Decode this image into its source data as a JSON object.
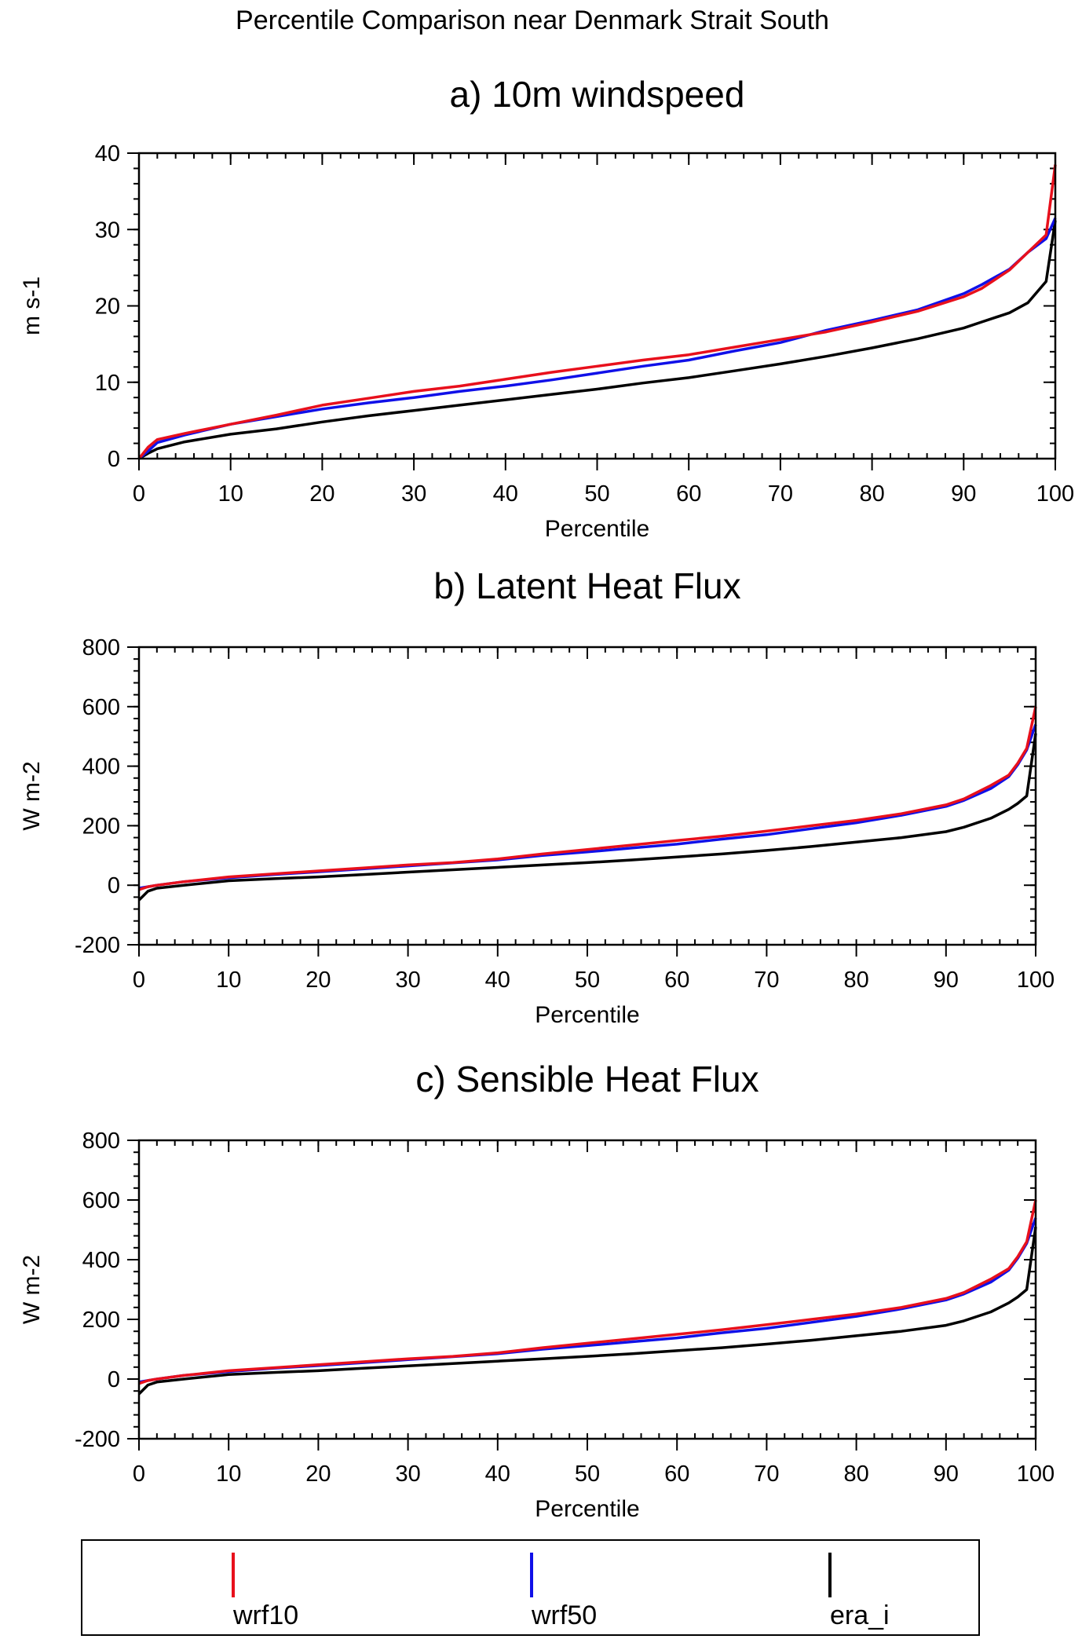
{
  "figure": {
    "title": "Percentile Comparison near Denmark Strait South"
  },
  "legend": {
    "entries": [
      {
        "label": "wrf10",
        "color": "#e8101c"
      },
      {
        "label": "wrf50",
        "color": "#1010e8"
      },
      {
        "label": "era_i",
        "color": "#000000"
      }
    ]
  },
  "chart_data": [
    {
      "type": "line",
      "title": "a)  10m windspeed",
      "xlabel": "Percentile",
      "ylabel": "m s-1",
      "xlim": [
        0,
        100
      ],
      "ylim": [
        0,
        40
      ],
      "xticks": [
        0,
        10,
        20,
        30,
        40,
        50,
        60,
        70,
        80,
        90,
        100
      ],
      "yticks": [
        0,
        10,
        20,
        30,
        40
      ],
      "x": [
        0,
        1,
        2,
        5,
        10,
        15,
        20,
        25,
        30,
        35,
        40,
        45,
        50,
        55,
        60,
        65,
        70,
        75,
        80,
        85,
        90,
        92,
        95,
        97,
        99,
        100
      ],
      "series": [
        {
          "name": "wrf10",
          "color": "#e8101c",
          "values": [
            0,
            1.5,
            2.5,
            3.3,
            4.5,
            5.7,
            7.0,
            7.9,
            8.8,
            9.5,
            10.4,
            11.3,
            12.1,
            12.9,
            13.6,
            14.6,
            15.6,
            16.6,
            17.9,
            19.3,
            21.2,
            22.3,
            24.7,
            27.0,
            29.3,
            38.5
          ]
        },
        {
          "name": "wrf50",
          "color": "#1010e8",
          "values": [
            0,
            1.0,
            2.1,
            3.1,
            4.5,
            5.5,
            6.5,
            7.3,
            8.0,
            8.8,
            9.5,
            10.3,
            11.2,
            12.1,
            12.9,
            14.1,
            15.2,
            16.8,
            18.1,
            19.5,
            21.6,
            22.8,
            24.8,
            27.0,
            28.8,
            31.5
          ]
        },
        {
          "name": "era_i",
          "color": "#000000",
          "values": [
            0,
            0.7,
            1.3,
            2.2,
            3.2,
            3.9,
            4.8,
            5.6,
            6.3,
            7.0,
            7.7,
            8.4,
            9.1,
            9.9,
            10.6,
            11.5,
            12.4,
            13.4,
            14.5,
            15.7,
            17.1,
            17.9,
            19.1,
            20.4,
            23.2,
            31.2
          ]
        }
      ]
    },
    {
      "type": "line",
      "title": "b)  Latent Heat Flux",
      "xlabel": "Percentile",
      "ylabel": "W m-2",
      "xlim": [
        0,
        100
      ],
      "ylim": [
        -200,
        800
      ],
      "xticks": [
        0,
        10,
        20,
        30,
        40,
        50,
        60,
        70,
        80,
        90,
        100
      ],
      "yticks": [
        -200,
        0,
        200,
        400,
        600,
        800
      ],
      "x": [
        0,
        1,
        2,
        5,
        10,
        15,
        20,
        25,
        30,
        35,
        40,
        45,
        50,
        55,
        60,
        65,
        70,
        75,
        80,
        85,
        90,
        92,
        95,
        97,
        98,
        99,
        100
      ],
      "series": [
        {
          "name": "wrf10",
          "color": "#e8101c",
          "values": [
            -15,
            -5,
            0,
            12,
            28,
            38,
            48,
            58,
            68,
            76,
            88,
            105,
            120,
            135,
            150,
            165,
            182,
            200,
            218,
            240,
            270,
            290,
            335,
            370,
            410,
            460,
            600
          ]
        },
        {
          "name": "wrf50",
          "color": "#1010e8",
          "values": [
            -10,
            -5,
            0,
            12,
            25,
            36,
            45,
            55,
            65,
            75,
            85,
            100,
            112,
            125,
            138,
            155,
            170,
            190,
            210,
            235,
            265,
            285,
            325,
            365,
            405,
            455,
            540
          ]
        },
        {
          "name": "era_i",
          "color": "#000000",
          "values": [
            -50,
            -20,
            -10,
            0,
            15,
            22,
            28,
            36,
            44,
            52,
            60,
            68,
            76,
            85,
            95,
            105,
            117,
            130,
            145,
            160,
            180,
            195,
            225,
            255,
            275,
            300,
            510
          ]
        }
      ]
    },
    {
      "type": "line",
      "title": "c)  Sensible Heat Flux",
      "xlabel": "Percentile",
      "ylabel": "W m-2",
      "xlim": [
        0,
        100
      ],
      "ylim": [
        -200,
        800
      ],
      "xticks": [
        0,
        10,
        20,
        30,
        40,
        50,
        60,
        70,
        80,
        90,
        100
      ],
      "yticks": [
        -200,
        0,
        200,
        400,
        600,
        800
      ],
      "x": [
        0,
        1,
        2,
        5,
        10,
        15,
        20,
        25,
        30,
        35,
        40,
        45,
        50,
        55,
        60,
        65,
        70,
        75,
        80,
        85,
        90,
        92,
        95,
        97,
        98,
        99,
        100
      ],
      "series": [
        {
          "name": "wrf10",
          "color": "#e8101c",
          "values": [
            -15,
            -5,
            0,
            12,
            28,
            38,
            48,
            58,
            68,
            76,
            88,
            105,
            120,
            135,
            150,
            165,
            182,
            200,
            218,
            240,
            270,
            290,
            335,
            370,
            410,
            460,
            600
          ]
        },
        {
          "name": "wrf50",
          "color": "#1010e8",
          "values": [
            -10,
            -5,
            0,
            12,
            25,
            36,
            45,
            55,
            65,
            75,
            85,
            100,
            112,
            125,
            138,
            155,
            170,
            190,
            210,
            235,
            265,
            285,
            325,
            365,
            405,
            455,
            540
          ]
        },
        {
          "name": "era_i",
          "color": "#000000",
          "values": [
            -50,
            -20,
            -10,
            0,
            15,
            22,
            28,
            36,
            44,
            52,
            60,
            68,
            76,
            85,
            95,
            105,
            117,
            130,
            145,
            160,
            180,
            195,
            225,
            255,
            275,
            300,
            510
          ]
        }
      ]
    }
  ]
}
